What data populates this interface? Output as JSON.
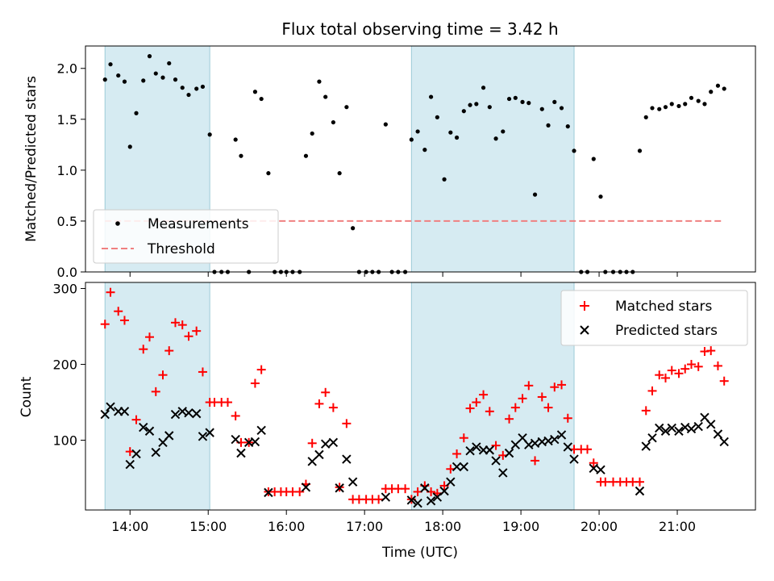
{
  "chart_data": [
    {
      "type": "scatter",
      "title": "Flux total observing time = 3.42 h",
      "ylabel": "Matched/Predicted stars",
      "xlim": [
        13.43,
        22.0
      ],
      "ylim": [
        0.0,
        2.22
      ],
      "yticks": [
        0.0,
        0.5,
        1.0,
        1.5,
        2.0
      ],
      "ytick_labels": [
        "0.0",
        "0.5",
        "1.0",
        "1.5",
        "2.0"
      ],
      "grid": false,
      "legend_position": "lower-left",
      "legend": [
        "Measurements",
        "Threshold"
      ],
      "shaded_intervals": [
        [
          13.68,
          15.02
        ],
        [
          17.6,
          19.68
        ]
      ],
      "threshold": {
        "name": "Threshold",
        "value": 0.5,
        "x_range": [
          13.68,
          21.6
        ],
        "color": "#f08080"
      },
      "series": [
        {
          "name": "Measurements",
          "marker": "dot",
          "color": "#000000",
          "x": [
            13.68,
            13.75,
            13.85,
            13.93,
            14.0,
            14.08,
            14.17,
            14.25,
            14.33,
            14.42,
            14.5,
            14.58,
            14.67,
            14.75,
            14.85,
            14.93,
            15.02,
            15.08,
            15.17,
            15.25,
            15.35,
            15.42,
            15.52,
            15.6,
            15.68,
            15.77,
            15.85,
            15.93,
            16.0,
            16.08,
            16.17,
            16.25,
            16.33,
            16.42,
            16.5,
            16.6,
            16.68,
            16.77,
            16.85,
            16.93,
            17.02,
            17.1,
            17.18,
            17.27,
            17.35,
            17.43,
            17.52,
            17.6,
            17.68,
            17.77,
            17.85,
            17.93,
            18.02,
            18.1,
            18.18,
            18.27,
            18.35,
            18.43,
            18.52,
            18.6,
            18.68,
            18.77,
            18.85,
            18.93,
            19.02,
            19.1,
            19.18,
            19.27,
            19.35,
            19.43,
            19.52,
            19.6,
            19.68,
            19.77,
            19.85,
            19.93,
            20.02,
            20.08,
            20.18,
            20.27,
            20.35,
            20.43,
            20.52,
            20.6,
            20.68,
            20.77,
            20.85,
            20.93,
            21.02,
            21.1,
            21.18,
            21.27,
            21.35,
            21.43,
            21.52,
            21.6
          ],
          "y": [
            1.89,
            2.04,
            1.93,
            1.87,
            1.23,
            1.56,
            1.88,
            2.12,
            1.95,
            1.91,
            2.05,
            1.89,
            1.81,
            1.74,
            1.8,
            1.82,
            1.35,
            0.0,
            0.0,
            0.0,
            1.3,
            1.14,
            0.0,
            1.77,
            1.7,
            0.97,
            0.0,
            0.0,
            0.0,
            0.0,
            0.0,
            1.14,
            1.36,
            1.87,
            1.72,
            1.47,
            0.97,
            1.62,
            0.43,
            0.0,
            0.0,
            0.0,
            0.0,
            1.45,
            0.0,
            0.0,
            0.0,
            1.3,
            1.38,
            1.2,
            1.72,
            1.52,
            0.91,
            1.37,
            1.32,
            1.58,
            1.64,
            1.65,
            1.81,
            1.62,
            1.31,
            1.38,
            1.7,
            1.71,
            1.67,
            1.66,
            0.76,
            1.6,
            1.44,
            1.67,
            1.61,
            1.43,
            1.19,
            0.0,
            0.0,
            1.11,
            0.74,
            0.0,
            0.0,
            0.0,
            0.0,
            0.0,
            1.19,
            1.52,
            1.61,
            1.6,
            1.62,
            1.65,
            1.63,
            1.65,
            1.71,
            1.68,
            1.65,
            1.77,
            1.83,
            1.8
          ]
        }
      ]
    },
    {
      "type": "scatter",
      "xlabel": "Time (UTC)",
      "ylabel": "Count",
      "xlim": [
        13.43,
        22.0
      ],
      "ylim": [
        8,
        308
      ],
      "xticks": [
        14,
        15,
        16,
        17,
        18,
        19,
        20,
        21
      ],
      "xtick_labels": [
        "14:00",
        "15:00",
        "16:00",
        "17:00",
        "18:00",
        "19:00",
        "20:00",
        "21:00"
      ],
      "yticks": [
        100,
        200,
        300
      ],
      "ytick_labels": [
        "100",
        "200",
        "300"
      ],
      "grid": false,
      "legend_position": "top-right",
      "legend": [
        "Matched stars",
        "Predicted stars"
      ],
      "shaded_intervals": [
        [
          13.68,
          15.02
        ],
        [
          17.6,
          19.68
        ]
      ],
      "series": [
        {
          "name": "Matched stars",
          "marker": "plus",
          "color": "#ff0000",
          "x": [
            13.68,
            13.75,
            13.85,
            13.93,
            14.0,
            14.08,
            14.17,
            14.25,
            14.33,
            14.42,
            14.5,
            14.58,
            14.67,
            14.75,
            14.85,
            14.93,
            15.02,
            15.08,
            15.17,
            15.25,
            15.35,
            15.42,
            15.52,
            15.6,
            15.68,
            15.77,
            15.85,
            15.93,
            16.0,
            16.08,
            16.17,
            16.25,
            16.33,
            16.42,
            16.5,
            16.6,
            16.68,
            16.77,
            16.85,
            16.93,
            17.02,
            17.1,
            17.18,
            17.27,
            17.35,
            17.43,
            17.52,
            17.6,
            17.68,
            17.77,
            17.85,
            17.93,
            18.02,
            18.1,
            18.18,
            18.27,
            18.35,
            18.43,
            18.52,
            18.6,
            18.68,
            18.77,
            18.85,
            18.93,
            19.02,
            19.1,
            19.18,
            19.27,
            19.35,
            19.43,
            19.52,
            19.6,
            19.68,
            19.77,
            19.85,
            19.93,
            20.02,
            20.08,
            20.18,
            20.27,
            20.35,
            20.43,
            20.52,
            20.6,
            20.68,
            20.77,
            20.85,
            20.93,
            21.02,
            21.1,
            21.18,
            21.27,
            21.35,
            21.43,
            21.52,
            21.6
          ],
          "y": [
            253,
            295,
            270,
            258,
            85,
            127,
            220,
            236,
            164,
            186,
            218,
            255,
            252,
            237,
            244,
            190,
            150,
            150,
            150,
            150,
            132,
            97,
            97,
            175,
            193,
            32,
            32,
            32,
            32,
            32,
            32,
            42,
            96,
            148,
            163,
            143,
            38,
            122,
            22,
            22,
            22,
            22,
            22,
            36,
            36,
            36,
            36,
            22,
            32,
            40,
            32,
            30,
            40,
            62,
            82,
            103,
            142,
            150,
            160,
            138,
            93,
            80,
            128,
            143,
            155,
            172,
            73,
            157,
            143,
            170,
            173,
            129,
            88,
            88,
            88,
            70,
            45,
            45,
            45,
            45,
            45,
            45,
            45,
            139,
            165,
            186,
            182,
            192,
            188,
            194,
            200,
            197,
            217,
            218,
            198,
            178
          ]
        },
        {
          "name": "Predicted stars",
          "marker": "x",
          "color": "#000000",
          "x": [
            13.68,
            13.75,
            13.85,
            13.93,
            14.0,
            14.08,
            14.17,
            14.25,
            14.33,
            14.42,
            14.5,
            14.58,
            14.67,
            14.75,
            14.85,
            14.93,
            15.02,
            15.42,
            15.35,
            15.52,
            15.6,
            15.68,
            15.77,
            16.25,
            16.33,
            16.42,
            16.5,
            16.6,
            16.68,
            16.77,
            16.85,
            17.27,
            17.6,
            17.68,
            17.77,
            17.85,
            17.93,
            18.02,
            18.1,
            18.18,
            18.27,
            18.35,
            18.43,
            18.52,
            18.6,
            18.68,
            18.77,
            18.85,
            18.93,
            19.02,
            19.1,
            19.18,
            19.27,
            19.35,
            19.43,
            19.52,
            19.6,
            19.68,
            19.93,
            20.02,
            20.52,
            20.6,
            20.68,
            20.77,
            20.85,
            20.93,
            21.02,
            21.1,
            21.18,
            21.27,
            21.35,
            21.43,
            21.52,
            21.6
          ],
          "y": [
            134,
            144,
            138,
            138,
            68,
            82,
            117,
            112,
            84,
            97,
            106,
            134,
            138,
            136,
            135,
            105,
            110,
            83,
            101,
            97,
            98,
            113,
            31,
            38,
            72,
            81,
            95,
            97,
            37,
            75,
            45,
            25,
            21,
            17,
            37,
            20,
            25,
            33,
            45,
            65,
            65,
            86,
            91,
            87,
            87,
            73,
            57,
            83,
            94,
            103,
            94,
            96,
            98,
            99,
            101,
            107,
            91,
            75,
            63,
            61,
            33,
            92,
            103,
            116,
            112,
            116,
            112,
            117,
            115,
            118,
            130,
            121,
            108,
            98
          ]
        }
      ]
    }
  ]
}
